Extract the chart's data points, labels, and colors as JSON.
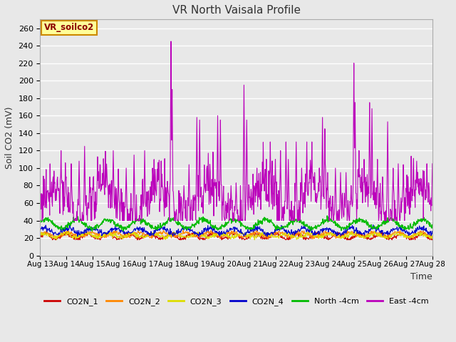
{
  "title": "VR North Vaisala Profile",
  "ylabel": "Soil CO2 (mV)",
  "xlabel": "Time",
  "annotation": "VR_soilco2",
  "ylim": [
    0,
    270
  ],
  "yticks": [
    0,
    20,
    40,
    60,
    80,
    100,
    120,
    140,
    160,
    180,
    200,
    220,
    240,
    260
  ],
  "x_labels": [
    "Aug 13",
    "Aug 14",
    "Aug 15",
    "Aug 16",
    "Aug 17",
    "Aug 18",
    "Aug 19",
    "Aug 20",
    "Aug 21",
    "Aug 22",
    "Aug 23",
    "Aug 24",
    "Aug 25",
    "Aug 26",
    "Aug 27",
    "Aug 28"
  ],
  "series_colors": {
    "CO2N_1": "#cc0000",
    "CO2N_2": "#ff8800",
    "CO2N_3": "#dddd00",
    "CO2N_4": "#0000cc",
    "North_4cm": "#00bb00",
    "East_4cm": "#bb00bb"
  },
  "plot_bg_color": "#e8e8e8",
  "fig_bg_color": "#e8e8e8",
  "title_fontsize": 11,
  "n_points": 1000
}
